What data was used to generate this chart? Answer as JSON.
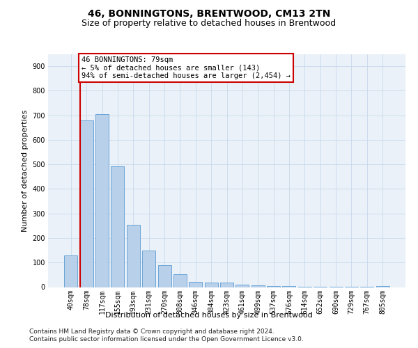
{
  "title1": "46, BONNINGTONS, BRENTWOOD, CM13 2TN",
  "title2": "Size of property relative to detached houses in Brentwood",
  "xlabel": "Distribution of detached houses by size in Brentwood",
  "ylabel": "Number of detached properties",
  "bar_labels": [
    "40sqm",
    "78sqm",
    "117sqm",
    "155sqm",
    "193sqm",
    "231sqm",
    "270sqm",
    "308sqm",
    "346sqm",
    "384sqm",
    "423sqm",
    "461sqm",
    "499sqm",
    "537sqm",
    "576sqm",
    "614sqm",
    "652sqm",
    "690sqm",
    "729sqm",
    "767sqm",
    "805sqm"
  ],
  "bar_values": [
    130,
    678,
    705,
    492,
    253,
    150,
    90,
    52,
    22,
    18,
    18,
    10,
    7,
    5,
    4,
    2,
    2,
    2,
    1,
    1,
    5
  ],
  "bar_color": "#b8d0ea",
  "bar_edge_color": "#5b9bd5",
  "annotation_line_bar_idx": 1,
  "annotation_text_line1": "46 BONNINGTONS: 79sqm",
  "annotation_text_line2": "← 5% of detached houses are smaller (143)",
  "annotation_text_line3": "94% of semi-detached houses are larger (2,454) →",
  "annotation_box_color": "#cc0000",
  "ylim_max": 950,
  "yticks": [
    0,
    100,
    200,
    300,
    400,
    500,
    600,
    700,
    800,
    900
  ],
  "grid_color": "#c8d8eb",
  "bg_color": "#eaf1f8",
  "footer1": "Contains HM Land Registry data © Crown copyright and database right 2024.",
  "footer2": "Contains public sector information licensed under the Open Government Licence v3.0.",
  "title1_fontsize": 10,
  "title2_fontsize": 9,
  "axis_label_fontsize": 8,
  "tick_fontsize": 7,
  "footer_fontsize": 6.5,
  "annot_fontsize": 7.5
}
